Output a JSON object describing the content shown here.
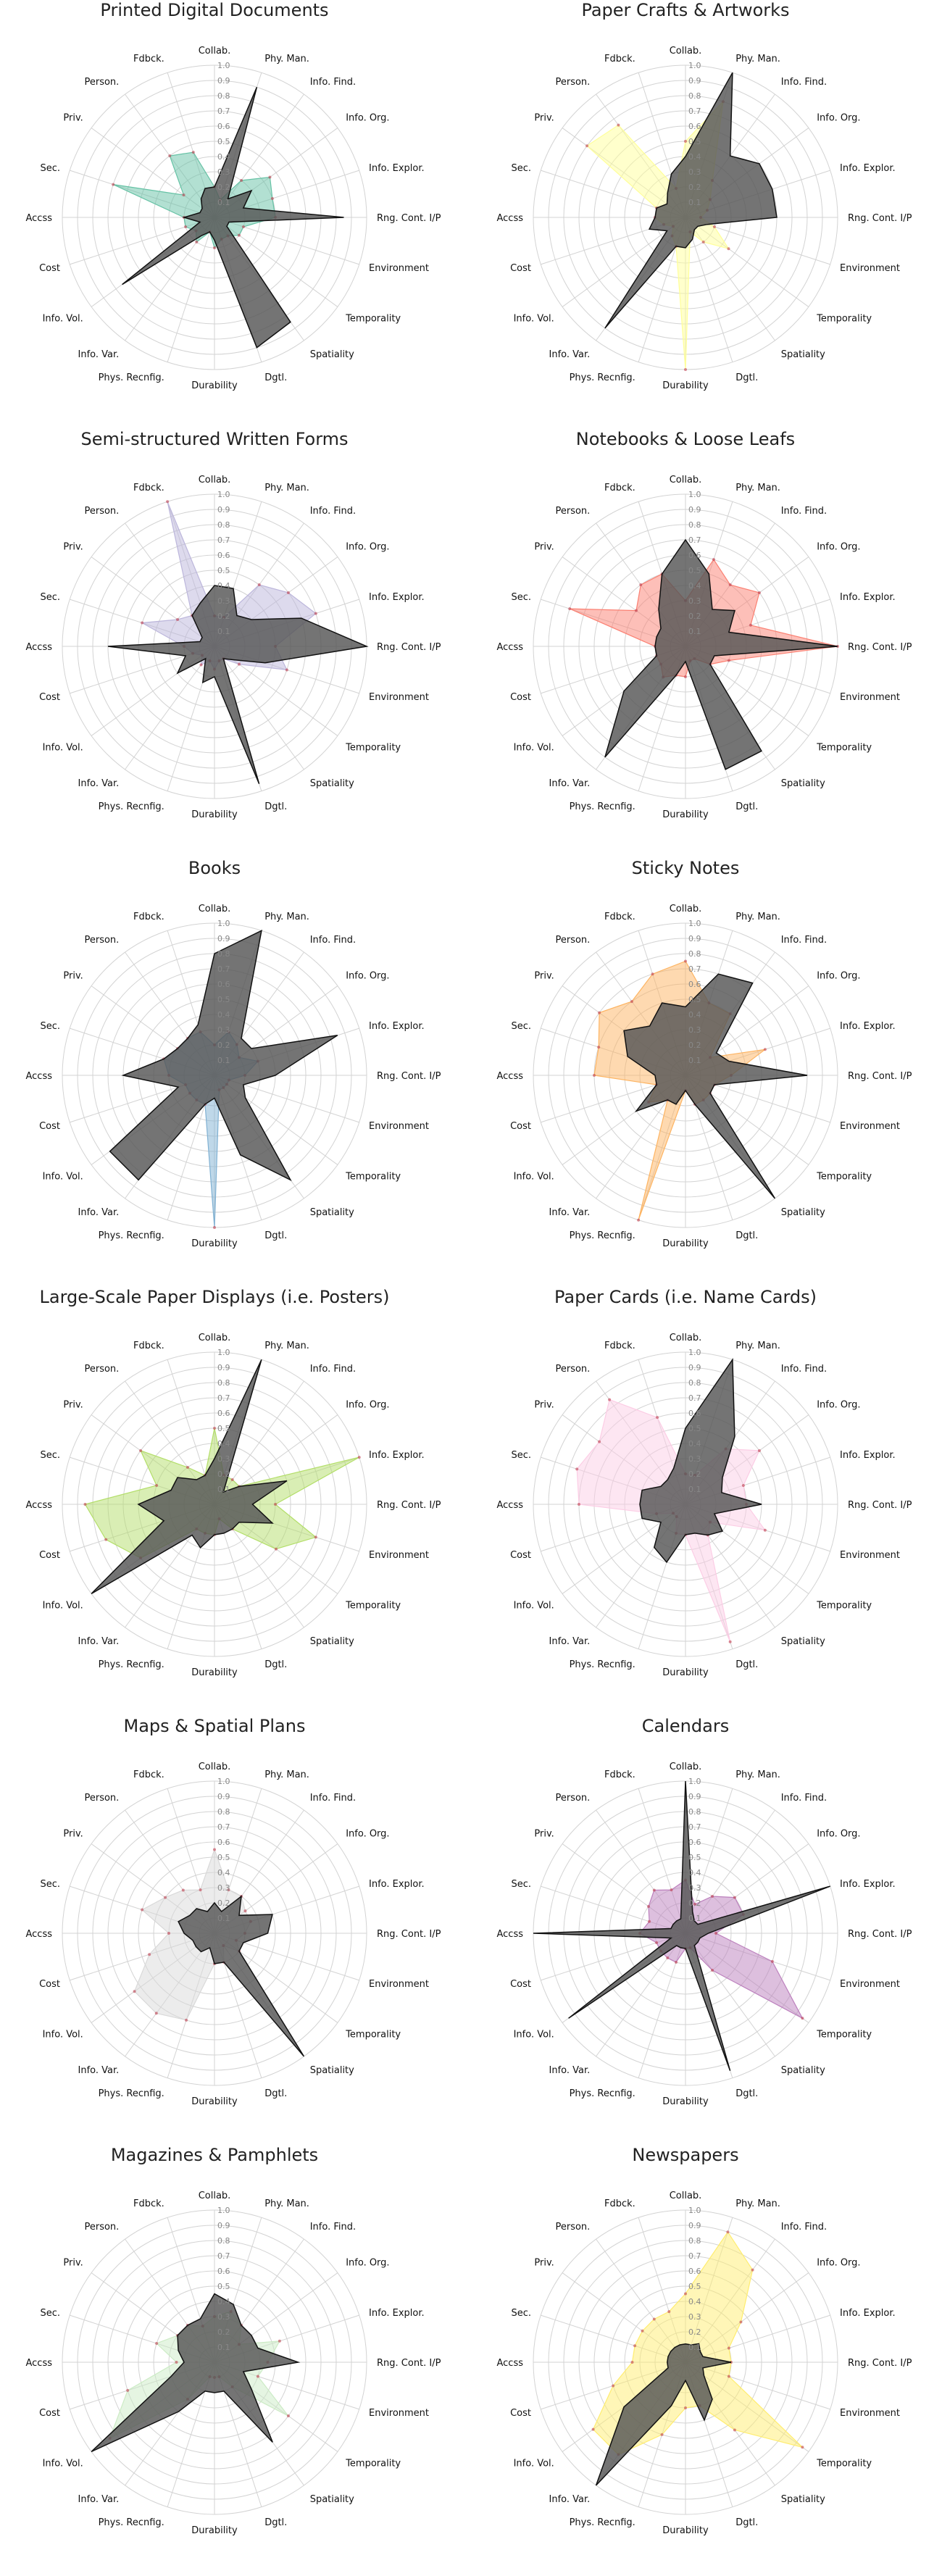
{
  "figure": {
    "axes": [
      "Collab.",
      "Phy. Man.",
      "Info. Find.",
      "Info. Org.",
      "Info. Explor.",
      "Rng. Cont. I/P",
      "Environment",
      "Temporality",
      "Spatiality",
      "Dgtl.",
      "Durability",
      "Phys. Recnfig.",
      "Info. Var.",
      "Info. Vol.",
      "Cost",
      "Accss",
      "Sec.",
      "Priv.",
      "Person.",
      "Fdbck."
    ],
    "rticks": [
      "0.1",
      "0.2",
      "0.3",
      "0.4",
      "0.5",
      "0.6",
      "0.7",
      "0.8",
      "0.9",
      "1.0"
    ],
    "comparison_color": "#555555"
  },
  "chart_data": [
    {
      "type": "radar",
      "title": "Printed Digital Documents",
      "color": "#66c2a5",
      "rlim": [
        0,
        1
      ],
      "series": [
        {
          "values": [
            0.2,
            0.12,
            0.3,
            0.45,
            0.4,
            0.4,
            0.2,
            0.2,
            0.15,
            0.15,
            0.2,
            0.1,
            0.2,
            0.15,
            0.2,
            0.2,
            0.7,
            0.25,
            0.5,
            0.45
          ]
        },
        {
          "values": [
            0.2,
            0.9,
            0.15,
            0.3,
            0.2,
            0.85,
            0.1,
            0.1,
            0.85,
            0.9,
            0.15,
            0.1,
            0.15,
            0.75,
            0.1,
            0.2,
            0.1,
            0.1,
            0.15,
            0.2
          ]
        }
      ]
    },
    {
      "type": "radar",
      "title": "Paper Crafts & Artworks",
      "color": "#ffff99",
      "rlim": [
        0,
        1
      ],
      "series": [
        {
          "values": [
            0.5,
            0.8,
            0.3,
            0.2,
            0.15,
            0.1,
            0.2,
            0.35,
            0.2,
            0.1,
            1.0,
            0.2,
            0.15,
            0.1,
            0.15,
            0.2,
            0.2,
            0.8,
            0.75,
            0.2
          ]
        },
        {
          "values": [
            0.4,
            1.0,
            0.5,
            0.6,
            0.6,
            0.6,
            0.15,
            0.1,
            0.1,
            0.15,
            0.2,
            0.2,
            0.9,
            0.15,
            0.25,
            0.2,
            0.2,
            0.15,
            0.2,
            0.3
          ]
        }
      ]
    },
    {
      "type": "radar",
      "title": "Semi-structured Written Forms",
      "color": "#bcb6db",
      "rlim": [
        0,
        1
      ],
      "series": [
        {
          "values": [
            0.2,
            0.2,
            0.5,
            0.6,
            0.7,
            0.4,
            0.5,
            0.2,
            0.1,
            0.1,
            0.15,
            0.1,
            0.15,
            0.1,
            0.15,
            0.2,
            0.5,
            0.3,
            0.25,
            1.0
          ]
        },
        {
          "values": [
            0.4,
            0.4,
            0.25,
            0.3,
            0.6,
            1.0,
            0.35,
            0.15,
            0.1,
            0.95,
            0.2,
            0.25,
            0.1,
            0.3,
            0.2,
            0.7,
            0.1,
            0.1,
            0.25,
            0.3
          ]
        }
      ]
    },
    {
      "type": "radar",
      "title": "Notebooks & Loose Leafs",
      "color": "#fb8072",
      "rlim": [
        0,
        1
      ],
      "series": [
        {
          "values": [
            0.3,
            0.6,
            0.5,
            0.6,
            0.45,
            1.0,
            0.3,
            0.2,
            0.1,
            0.1,
            0.2,
            0.2,
            0.25,
            0.2,
            0.2,
            0.2,
            0.8,
            0.4,
            0.5,
            0.5
          ]
        },
        {
          "values": [
            0.7,
            0.5,
            0.3,
            0.4,
            0.3,
            1.0,
            0.2,
            0.2,
            0.85,
            0.85,
            0.1,
            0.2,
            0.9,
            0.5,
            0.2,
            0.2,
            0.2,
            0.2,
            0.3,
            0.5
          ]
        }
      ]
    },
    {
      "type": "radar",
      "title": "Books",
      "color": "#80b1d3",
      "rlim": [
        0,
        1
      ],
      "series": [
        {
          "values": [
            0.2,
            0.3,
            0.25,
            0.2,
            0.3,
            0.2,
            0.1,
            0.1,
            0.1,
            0.1,
            1.0,
            0.2,
            0.2,
            0.2,
            0.2,
            0.3,
            0.35,
            0.3,
            0.3,
            0.3
          ]
        },
        {
          "values": [
            0.8,
            1.0,
            0.3,
            0.3,
            0.85,
            0.4,
            0.2,
            0.25,
            0.85,
            0.55,
            0.15,
            0.2,
            0.85,
            0.85,
            0.25,
            0.6,
            0.35,
            0.3,
            0.3,
            0.35
          ]
        }
      ]
    },
    {
      "type": "radar",
      "title": "Sticky Notes",
      "color": "#fdb462",
      "rlim": [
        0,
        1
      ],
      "series": [
        {
          "values": [
            0.75,
            0.5,
            0.5,
            0.2,
            0.55,
            0.3,
            0.2,
            0.2,
            0.2,
            0.2,
            0.1,
            1.0,
            0.2,
            0.3,
            0.2,
            0.6,
            0.6,
            0.7,
            0.6,
            0.7
          ]
        },
        {
          "values": [
            0.45,
            0.7,
            0.75,
            0.25,
            0.3,
            0.8,
            0.2,
            0.2,
            1.0,
            0.2,
            0.1,
            0.2,
            0.2,
            0.4,
            0.2,
            0.2,
            0.4,
            0.5,
            0.4,
            0.5
          ]
        }
      ]
    },
    {
      "type": "radar",
      "title": "Large-Scale Paper Displays (i.e. Posters)",
      "color": "#b3de69",
      "rlim": [
        0,
        1
      ],
      "series": [
        {
          "values": [
            0.5,
            0.2,
            0.2,
            0.2,
            1.0,
            0.4,
            0.7,
            0.5,
            0.2,
            0.1,
            0.2,
            0.2,
            0.2,
            0.6,
            0.75,
            0.85,
            0.4,
            0.6,
            0.3,
            0.2
          ]
        },
        {
          "values": [
            0.3,
            1.0,
            0.1,
            0.2,
            0.5,
            0.25,
            0.4,
            0.2,
            0.2,
            0.2,
            0.2,
            0.3,
            0.25,
            1.0,
            0.35,
            0.5,
            0.3,
            0.3,
            0.2,
            0.2
          ]
        }
      ]
    },
    {
      "type": "radar",
      "title": "Paper Cards (i.e. Name Cards)",
      "color": "#fccde5",
      "rlim": [
        0,
        1
      ],
      "series": [
        {
          "values": [
            0.2,
            0.2,
            0.45,
            0.6,
            0.4,
            0.4,
            0.55,
            0.2,
            0.25,
            0.95,
            0.2,
            0.2,
            0.1,
            0.1,
            0.2,
            0.7,
            0.75,
            0.7,
            0.85,
            0.6
          ]
        },
        {
          "values": [
            0.5,
            1.0,
            0.55,
            0.3,
            0.25,
            0.5,
            0.2,
            0.3,
            0.25,
            0.2,
            0.2,
            0.4,
            0.35,
            0.2,
            0.3,
            0.3,
            0.3,
            0.2,
            0.2,
            0.25
          ]
        }
      ]
    },
    {
      "type": "radar",
      "title": "Maps & Spatial Plans",
      "color": "#d9d9d9",
      "rlim": [
        0,
        1
      ],
      "series": [
        {
          "values": [
            0.55,
            0.3,
            0.3,
            0.25,
            0.25,
            0.2,
            0.15,
            0.2,
            0.1,
            0.2,
            0.2,
            0.6,
            0.65,
            0.65,
            0.45,
            0.3,
            0.5,
            0.4,
            0.35,
            0.3
          ]
        },
        {
          "values": [
            0.2,
            0.15,
            0.3,
            0.2,
            0.4,
            0.35,
            0.2,
            0.2,
            1.0,
            0.2,
            0.2,
            0.1,
            0.15,
            0.15,
            0.15,
            0.2,
            0.25,
            0.2,
            0.2,
            0.15
          ]
        }
      ]
    },
    {
      "type": "radar",
      "title": "Calendars",
      "color": "#bc80bd",
      "rlim": [
        0,
        1
      ],
      "series": [
        {
          "values": [
            0.35,
            0.2,
            0.3,
            0.4,
            0.4,
            0.2,
            0.6,
            0.95,
            0.3,
            0.1,
            0.1,
            0.2,
            0.2,
            0.2,
            0.2,
            0.3,
            0.25,
            0.3,
            0.35,
            0.3
          ]
        },
        {
          "values": [
            1.0,
            0.15,
            0.1,
            0.1,
            1.0,
            0.15,
            0.1,
            0.1,
            0.1,
            0.95,
            0.1,
            0.1,
            0.1,
            0.95,
            0.1,
            1.0,
            0.1,
            0.1,
            0.1,
            0.1
          ]
        }
      ]
    },
    {
      "type": "radar",
      "title": "Magazines & Pamphlets",
      "color": "#ccebc5",
      "rlim": [
        0,
        1
      ],
      "series": [
        {
          "values": [
            0.3,
            0.35,
            0.3,
            0.2,
            0.45,
            0.35,
            0.3,
            0.6,
            0.2,
            0.1,
            0.1,
            0.1,
            0.3,
            0.85,
            0.6,
            0.25,
            0.4,
            0.3,
            0.3,
            0.25
          ]
        },
        {
          "values": [
            0.45,
            0.4,
            0.3,
            0.3,
            0.3,
            0.55,
            0.2,
            0.3,
            0.65,
            0.2,
            0.2,
            0.2,
            0.4,
            1.0,
            0.3,
            0.2,
            0.25,
            0.3,
            0.3,
            0.3
          ]
        }
      ]
    },
    {
      "type": "radar",
      "title": "Newspapers",
      "color": "#ffed6f",
      "rlim": [
        0,
        1
      ],
      "series": [
        {
          "values": [
            0.45,
            0.9,
            0.75,
            0.45,
            0.3,
            0.3,
            0.3,
            0.95,
            0.55,
            0.3,
            0.3,
            0.5,
            0.75,
            0.75,
            0.5,
            0.35,
            0.35,
            0.35,
            0.35,
            0.35
          ]
        },
        {
          "values": [
            0.12,
            0.12,
            0.15,
            0.12,
            0.12,
            0.3,
            0.12,
            0.15,
            0.3,
            0.4,
            0.12,
            0.3,
            1.0,
            0.5,
            0.12,
            0.12,
            0.12,
            0.12,
            0.12,
            0.12
          ]
        }
      ]
    }
  ]
}
